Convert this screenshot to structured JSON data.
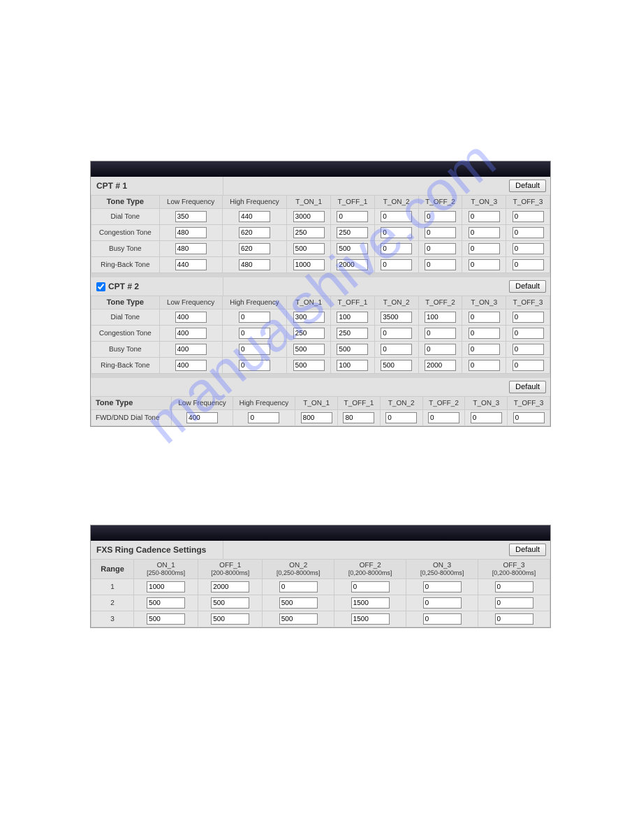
{
  "watermark": "manualshive.com",
  "default_label": "Default",
  "cpt1": {
    "title": "CPT # 1",
    "headers": [
      "Tone Type",
      "Low Frequency",
      "High Frequency",
      "T_ON_1",
      "T_OFF_1",
      "T_ON_2",
      "T_OFF_2",
      "T_ON_3",
      "T_OFF_3"
    ],
    "rows": [
      {
        "label": "Dial Tone",
        "v": [
          "350",
          "440",
          "3000",
          "0",
          "0",
          "0",
          "0",
          "0"
        ]
      },
      {
        "label": "Congestion Tone",
        "v": [
          "480",
          "620",
          "250",
          "250",
          "0",
          "0",
          "0",
          "0"
        ]
      },
      {
        "label": "Busy Tone",
        "v": [
          "480",
          "620",
          "500",
          "500",
          "0",
          "0",
          "0",
          "0"
        ]
      },
      {
        "label": "Ring-Back Tone",
        "v": [
          "440",
          "480",
          "1000",
          "2000",
          "0",
          "0",
          "0",
          "0"
        ]
      }
    ]
  },
  "cpt2": {
    "title": "CPT # 2",
    "checked": true,
    "headers": [
      "Tone Type",
      "Low Frequency",
      "High Frequency",
      "T_ON_1",
      "T_OFF_1",
      "T_ON_2",
      "T_OFF_2",
      "T_ON_3",
      "T_OFF_3"
    ],
    "rows": [
      {
        "label": "Dial Tone",
        "v": [
          "400",
          "0",
          "300",
          "100",
          "3500",
          "100",
          "0",
          "0"
        ]
      },
      {
        "label": "Congestion Tone",
        "v": [
          "400",
          "0",
          "250",
          "250",
          "0",
          "0",
          "0",
          "0"
        ]
      },
      {
        "label": "Busy Tone",
        "v": [
          "400",
          "0",
          "500",
          "500",
          "0",
          "0",
          "0",
          "0"
        ]
      },
      {
        "label": "Ring-Back Tone",
        "v": [
          "400",
          "0",
          "500",
          "100",
          "500",
          "2000",
          "0",
          "0"
        ]
      }
    ]
  },
  "extra": {
    "headers": [
      "Tone Type",
      "Low Frequency",
      "High Frequency",
      "T_ON_1",
      "T_OFF_1",
      "T_ON_2",
      "T_OFF_2",
      "T_ON_3",
      "T_OFF_3"
    ],
    "rows": [
      {
        "label": "FWD/DND Dial Tone",
        "v": [
          "400",
          "0",
          "800",
          "80",
          "0",
          "0",
          "0",
          "0"
        ]
      }
    ]
  },
  "fxs": {
    "title": "FXS Ring Cadence Settings",
    "head_range": "Range",
    "head1": "ON_1",
    "sub1": "[250-8000ms]",
    "head2": "OFF_1",
    "sub2": "[200-8000ms]",
    "head3": "ON_2",
    "sub3": "[0,250-8000ms]",
    "head4": "OFF_2",
    "sub4": "[0,200-8000ms]",
    "head5": "ON_3",
    "sub5": "[0,250-8000ms]",
    "head6": "OFF_3",
    "sub6": "[0,200-8000ms]",
    "rows": [
      {
        "range": "1",
        "v": [
          "1000",
          "2000",
          "0",
          "0",
          "0",
          "0"
        ]
      },
      {
        "range": "2",
        "v": [
          "500",
          "500",
          "500",
          "1500",
          "0",
          "0"
        ]
      },
      {
        "range": "3",
        "v": [
          "500",
          "500",
          "500",
          "1500",
          "0",
          "0"
        ]
      }
    ]
  }
}
